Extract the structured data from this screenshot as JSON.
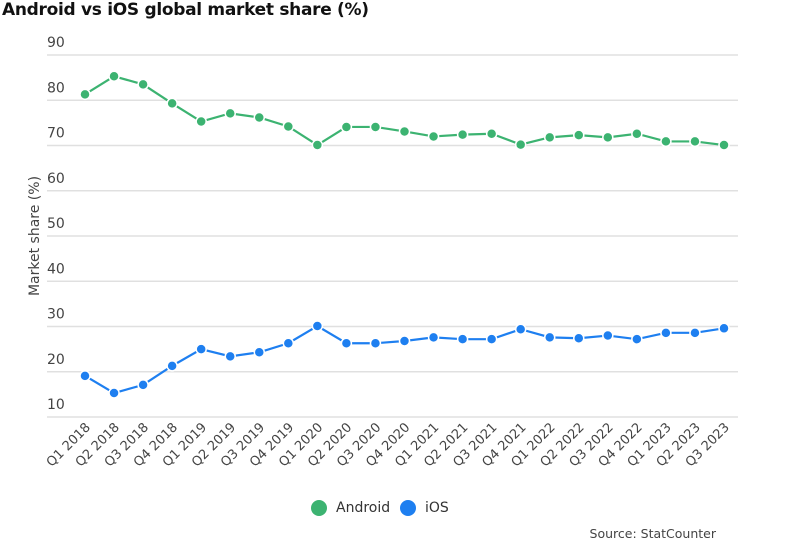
{
  "chart_data": {
    "type": "line",
    "title": "Android vs iOS global market share (%)",
    "xlabel": "",
    "ylabel": "Market share (%)",
    "ylim": [
      10,
      90
    ],
    "yticks": [
      10,
      20,
      30,
      40,
      50,
      60,
      70,
      80,
      90
    ],
    "grid": true,
    "legend_position": "bottom",
    "categories": [
      "Q1 2018",
      "Q2 2018",
      "Q3 2018",
      "Q4 2018",
      "Q1 2019",
      "Q2 2019",
      "Q3 2019",
      "Q4 2019",
      "Q1 2020",
      "Q2 2020",
      "Q3 2020",
      "Q4 2020",
      "Q1 2021",
      "Q2 2021",
      "Q3 2021",
      "Q4 2021",
      "Q1 2022",
      "Q2 2022",
      "Q3 2022",
      "Q4 2022",
      "Q1 2023",
      "Q2 2023",
      "Q3 2023"
    ],
    "series": [
      {
        "name": "Android",
        "color": "#3cb371",
        "values": [
          81.3,
          85.3,
          83.5,
          79.3,
          75.3,
          77.1,
          76.2,
          74.2,
          70.1,
          74.1,
          74.1,
          73.1,
          72.0,
          72.4,
          72.6,
          70.2,
          71.8,
          72.3,
          71.8,
          72.6,
          70.9,
          70.9,
          70.1
        ]
      },
      {
        "name": "iOS",
        "color": "#1e7ff0",
        "values": [
          19.1,
          15.3,
          17.1,
          21.3,
          25.0,
          23.4,
          24.3,
          26.3,
          30.1,
          26.3,
          26.3,
          26.8,
          27.6,
          27.2,
          27.2,
          29.4,
          27.6,
          27.4,
          28.0,
          27.2,
          28.6,
          28.6,
          29.6
        ]
      }
    ],
    "source": "Source: StatCounter"
  }
}
